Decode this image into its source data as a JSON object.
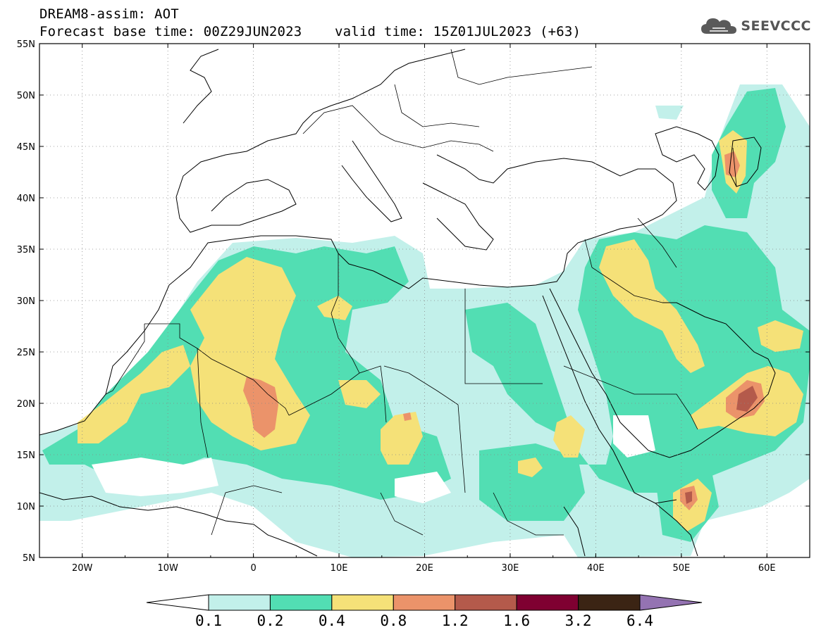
{
  "header": {
    "title_line1": "DREAM8-assim: AOT",
    "title_line2": "Forecast base time: 00Z29JUN2023    valid time: 15Z01JUL2023 (+63)"
  },
  "logo": {
    "text": "SEEVCCC",
    "icon": "cloud-icon",
    "color": "#555555"
  },
  "map": {
    "lon_range": [
      -25,
      65
    ],
    "lat_range": [
      5,
      55
    ],
    "lat_ticks": [
      "55N",
      "50N",
      "45N",
      "40N",
      "35N",
      "30N",
      "25N",
      "20N",
      "15N",
      "10N",
      "5N"
    ],
    "lon_ticks": [
      "20W",
      "10W",
      "0",
      "10E",
      "20E",
      "30E",
      "40E",
      "50E",
      "60E"
    ],
    "grid": "dotted"
  },
  "colorbar": {
    "labels": [
      "0.1",
      "0.2",
      "0.4",
      "0.8",
      "1.2",
      "1.6",
      "3.2",
      "6.4"
    ],
    "colors": [
      "#ffffff",
      "#c2f0ea",
      "#52deb3",
      "#f5e178",
      "#eb936a",
      "#b45a4b",
      "#7f0031",
      "#3b2414",
      "#9473b2"
    ]
  },
  "fields": {
    "colors": {
      "c1": "#c2f0ea",
      "c2": "#52deb3",
      "c3": "#f5e178",
      "c4": "#eb936a",
      "c5": "#b45a4b"
    }
  }
}
